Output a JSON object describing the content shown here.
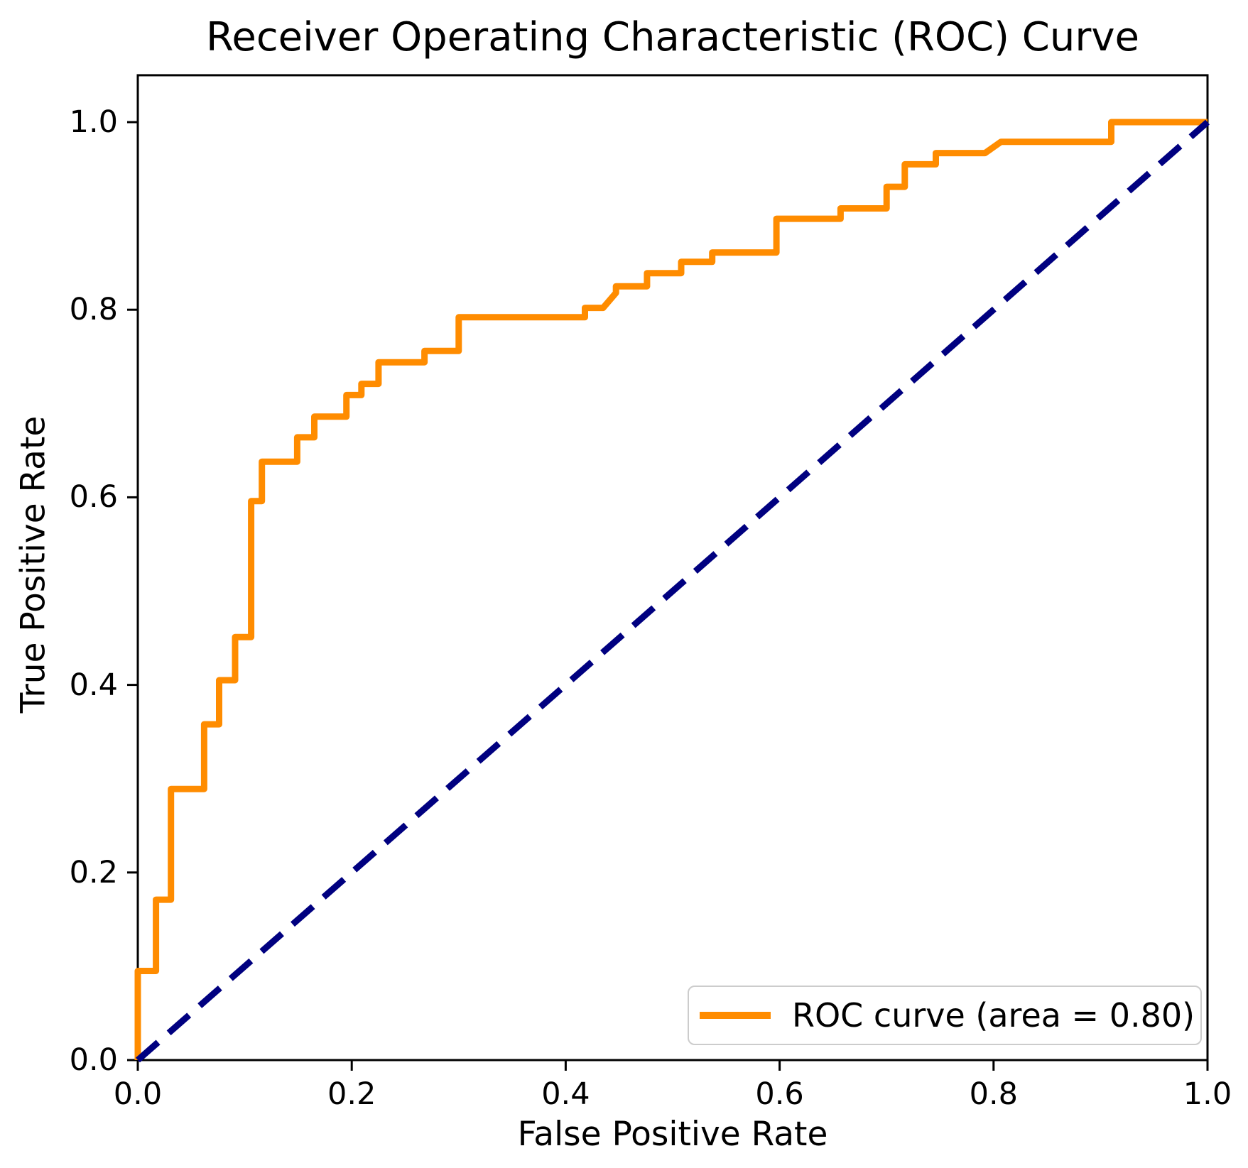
{
  "chart_data": {
    "type": "line",
    "title": "Receiver Operating Characteristic (ROC) Curve",
    "xlabel": "False Positive Rate",
    "ylabel": "True Positive Rate",
    "xlim": [
      0.0,
      1.0
    ],
    "ylim": [
      0.0,
      1.05
    ],
    "x_ticks": [
      0.0,
      0.2,
      0.4,
      0.6,
      0.8,
      1.0
    ],
    "y_ticks": [
      0.0,
      0.2,
      0.4,
      0.6,
      0.8,
      1.0
    ],
    "grid": false,
    "legend_position": "lower right",
    "series": [
      {
        "name": "ROC curve (area = 0.80)",
        "color": "#FF8C00",
        "style": "solid",
        "auc": 0.8,
        "points": [
          [
            0.0,
            0.0
          ],
          [
            0.0,
            0.095
          ],
          [
            0.017,
            0.095
          ],
          [
            0.017,
            0.171
          ],
          [
            0.031,
            0.171
          ],
          [
            0.031,
            0.289
          ],
          [
            0.062,
            0.289
          ],
          [
            0.062,
            0.358
          ],
          [
            0.076,
            0.358
          ],
          [
            0.076,
            0.405
          ],
          [
            0.091,
            0.405
          ],
          [
            0.091,
            0.451
          ],
          [
            0.106,
            0.451
          ],
          [
            0.106,
            0.596
          ],
          [
            0.116,
            0.596
          ],
          [
            0.116,
            0.638
          ],
          [
            0.149,
            0.638
          ],
          [
            0.149,
            0.664
          ],
          [
            0.165,
            0.664
          ],
          [
            0.165,
            0.686
          ],
          [
            0.195,
            0.686
          ],
          [
            0.195,
            0.709
          ],
          [
            0.209,
            0.709
          ],
          [
            0.209,
            0.721
          ],
          [
            0.225,
            0.721
          ],
          [
            0.225,
            0.744
          ],
          [
            0.268,
            0.744
          ],
          [
            0.268,
            0.756
          ],
          [
            0.3,
            0.756
          ],
          [
            0.3,
            0.792
          ],
          [
            0.418,
            0.792
          ],
          [
            0.418,
            0.802
          ],
          [
            0.435,
            0.802
          ],
          [
            0.447,
            0.818
          ],
          [
            0.447,
            0.825
          ],
          [
            0.476,
            0.825
          ],
          [
            0.476,
            0.839
          ],
          [
            0.508,
            0.839
          ],
          [
            0.508,
            0.851
          ],
          [
            0.537,
            0.851
          ],
          [
            0.537,
            0.861
          ],
          [
            0.597,
            0.861
          ],
          [
            0.597,
            0.897
          ],
          [
            0.657,
            0.897
          ],
          [
            0.657,
            0.908
          ],
          [
            0.7,
            0.908
          ],
          [
            0.7,
            0.931
          ],
          [
            0.717,
            0.931
          ],
          [
            0.717,
            0.955
          ],
          [
            0.746,
            0.955
          ],
          [
            0.746,
            0.967
          ],
          [
            0.792,
            0.967
          ],
          [
            0.807,
            0.979
          ],
          [
            0.91,
            0.979
          ],
          [
            0.91,
            1.0
          ],
          [
            1.0,
            1.0
          ]
        ]
      },
      {
        "name": "chance-diagonal",
        "color": "#000080",
        "style": "dashed",
        "points": [
          [
            0.0,
            0.0
          ],
          [
            1.0,
            1.0
          ]
        ]
      }
    ]
  },
  "legend": {
    "label": "ROC curve (area = 0.80)"
  },
  "colors": {
    "roc_curve": "#FF8C00",
    "diagonal": "#000080",
    "axis": "#000000",
    "legend_border": "#cccccc",
    "background": "#ffffff"
  },
  "tick_label_format": {
    "decimals": 1
  }
}
